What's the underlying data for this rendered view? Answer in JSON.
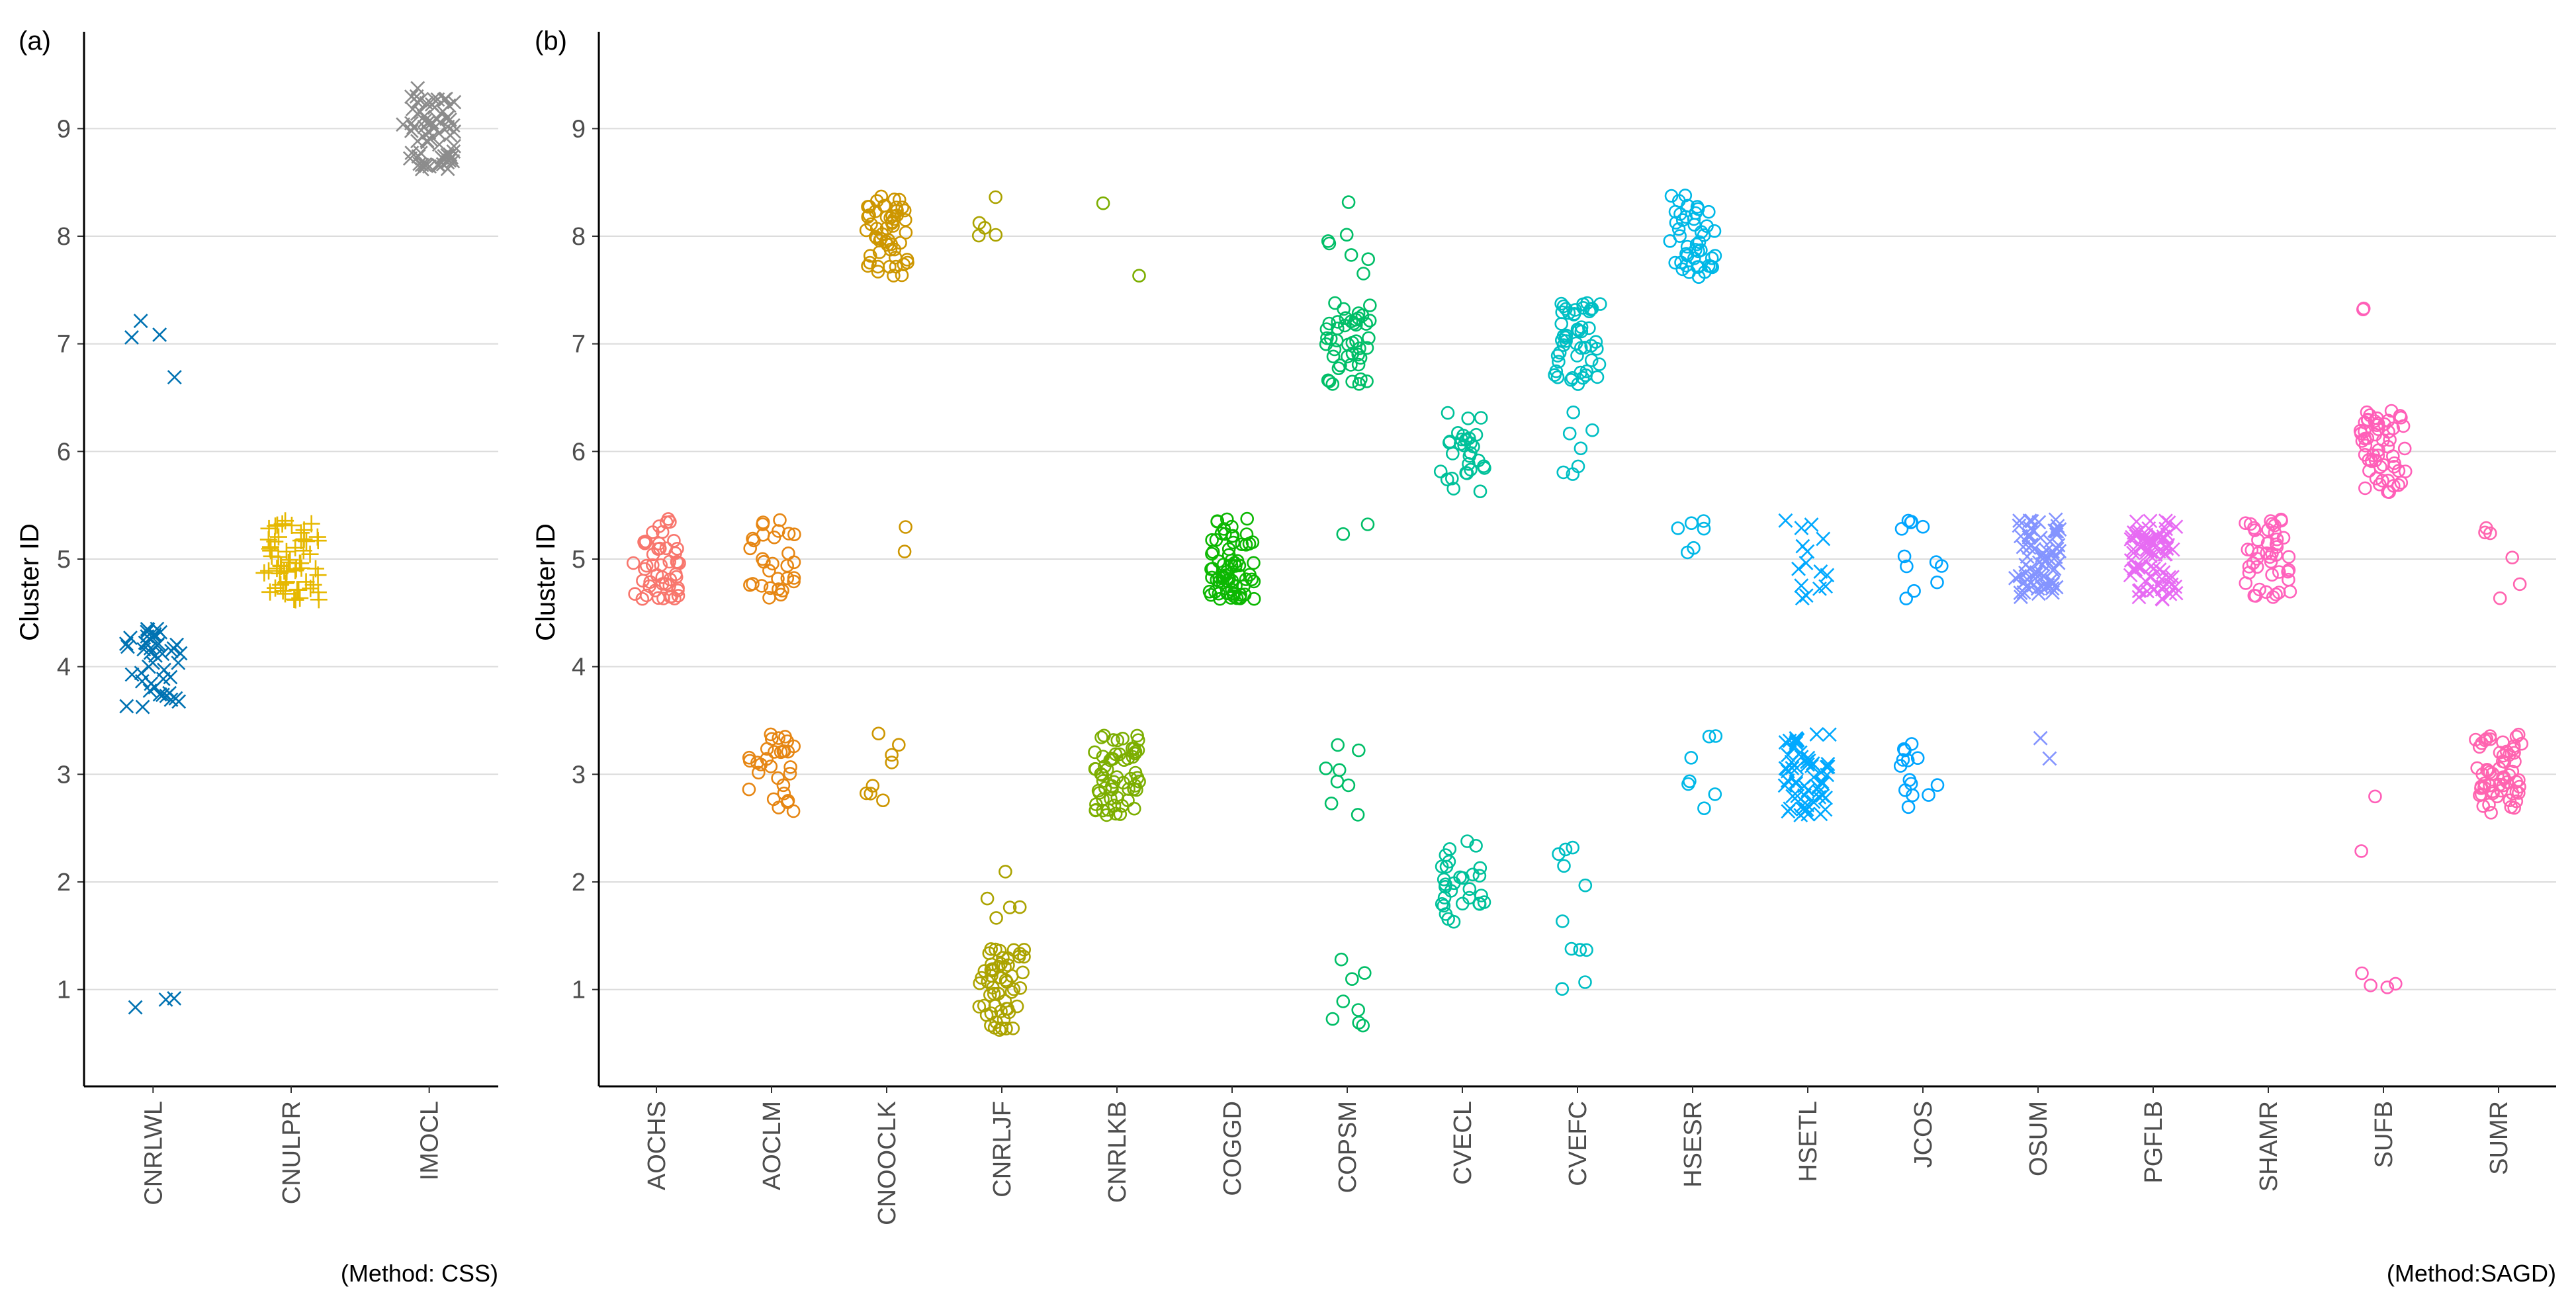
{
  "chart_data": [
    {
      "panel_label": "(a)",
      "type": "scatter",
      "caption": "(Method: CSS)",
      "ylabel": "Cluster ID",
      "ylim": [
        0.1,
        9.9
      ],
      "yticks": [
        1,
        2,
        3,
        4,
        5,
        6,
        7,
        8,
        9
      ],
      "categories": [
        "CNRLWL",
        "CNULPR",
        "IMOCL"
      ],
      "series": [
        {
          "name": "CNRLWL",
          "marker": "x",
          "color": "#0072B2",
          "clusters": [
            {
              "y": 4,
              "n": 45
            },
            {
              "y": 7,
              "n": 4
            },
            {
              "y": 1,
              "n": 3
            }
          ]
        },
        {
          "name": "CNULPR",
          "marker": "+",
          "color": "#E6B800",
          "clusters": [
            {
              "y": 5,
              "n": 60
            }
          ]
        },
        {
          "name": "IMOCL",
          "marker": "x",
          "color": "#8C8C8C",
          "clusters": [
            {
              "y": 9,
              "n": 70
            }
          ]
        }
      ]
    },
    {
      "panel_label": "(b)",
      "type": "scatter",
      "caption": "(Method:SAGD)",
      "ylabel": "Cluster ID",
      "ylim": [
        0.1,
        9.9
      ],
      "yticks": [
        1,
        2,
        3,
        4,
        5,
        6,
        7,
        8,
        9
      ],
      "categories": [
        "AOCHS",
        "AOCLM",
        "CNOOCLK",
        "CNRLJF",
        "CNRLKB",
        "COGGD",
        "COPSM",
        "CVECL",
        "CVEFC",
        "HSESR",
        "HSETL",
        "JCOS",
        "OSUM",
        "PGFLB",
        "SHAMR",
        "SUFB",
        "SUMR"
      ],
      "series": [
        {
          "name": "AOCHS",
          "marker": "o",
          "color": "#F8766D",
          "clusters": [
            {
              "y": 5,
              "n": 50
            }
          ]
        },
        {
          "name": "AOCLM",
          "marker": "o",
          "color": "#E68613",
          "clusters": [
            {
              "y": 5,
              "n": 30
            },
            {
              "y": 3,
              "n": 30
            }
          ]
        },
        {
          "name": "CNOOCLK",
          "marker": "o",
          "color": "#CD9600",
          "clusters": [
            {
              "y": 8,
              "n": 55
            },
            {
              "y": 5,
              "n": 2
            },
            {
              "y": 3,
              "n": 8
            }
          ]
        },
        {
          "name": "CNRLJF",
          "marker": "o",
          "color": "#ABA300",
          "clusters": [
            {
              "y": 8,
              "n": 5
            },
            {
              "y": 2,
              "n": 5
            },
            {
              "y": 1,
              "n": 55
            }
          ]
        },
        {
          "name": "CNRLKB",
          "marker": "o",
          "color": "#7CAE00",
          "clusters": [
            {
              "y": 8,
              "n": 2
            },
            {
              "y": 3,
              "n": 60
            }
          ]
        },
        {
          "name": "COGGD",
          "marker": "o",
          "color": "#0CB702",
          "clusters": [
            {
              "y": 5,
              "n": 70
            }
          ]
        },
        {
          "name": "COPSM",
          "marker": "o",
          "color": "#00BE67",
          "clusters": [
            {
              "y": 8,
              "n": 7
            },
            {
              "y": 7,
              "n": 45
            },
            {
              "y": 5,
              "n": 2
            },
            {
              "y": 3,
              "n": 8
            },
            {
              "y": 1,
              "n": 8
            }
          ]
        },
        {
          "name": "CVECL",
          "marker": "o",
          "color": "#00C19A",
          "clusters": [
            {
              "y": 6,
              "n": 30
            },
            {
              "y": 2,
              "n": 30
            }
          ]
        },
        {
          "name": "CVEFC",
          "marker": "o",
          "color": "#00BFC4",
          "clusters": [
            {
              "y": 7,
              "n": 50
            },
            {
              "y": 6,
              "n": 7
            },
            {
              "y": 2,
              "n": 6
            },
            {
              "y": 1,
              "n": 5
            }
          ]
        },
        {
          "name": "HSESR",
          "marker": "o",
          "color": "#00B8E7",
          "clusters": [
            {
              "y": 8,
              "n": 45
            },
            {
              "y": 5,
              "n": 6
            },
            {
              "y": 3,
              "n": 7
            }
          ]
        },
        {
          "name": "HSETL",
          "marker": "x",
          "color": "#00A9FF",
          "clusters": [
            {
              "y": 5,
              "n": 15
            },
            {
              "y": 3,
              "n": 60
            }
          ]
        },
        {
          "name": "JCOS",
          "marker": "o",
          "color": "#00A5FF",
          "clusters": [
            {
              "y": 5,
              "n": 12
            },
            {
              "y": 3,
              "n": 14
            }
          ]
        },
        {
          "name": "OSUM",
          "marker": "x",
          "color": "#8494FF",
          "clusters": [
            {
              "y": 5,
              "n": 70
            },
            {
              "y": 3,
              "n": 2
            }
          ]
        },
        {
          "name": "PGFLB",
          "marker": "x",
          "color": "#E76BF3",
          "clusters": [
            {
              "y": 5,
              "n": 75
            }
          ]
        },
        {
          "name": "SHAMR",
          "marker": "o",
          "color": "#FF62BC",
          "clusters": [
            {
              "y": 5,
              "n": 45
            }
          ]
        },
        {
          "name": "SUFB",
          "marker": "o",
          "color": "#FF5FB8",
          "clusters": [
            {
              "y": 7,
              "n": 2
            },
            {
              "y": 6,
              "n": 55
            },
            {
              "y": 3,
              "n": 1
            },
            {
              "y": 2,
              "n": 1
            },
            {
              "y": 1,
              "n": 4
            }
          ]
        },
        {
          "name": "SUMR",
          "marker": "o",
          "color": "#FF64B0",
          "clusters": [
            {
              "y": 5,
              "n": 6
            },
            {
              "y": 3,
              "n": 60
            }
          ]
        }
      ]
    }
  ]
}
